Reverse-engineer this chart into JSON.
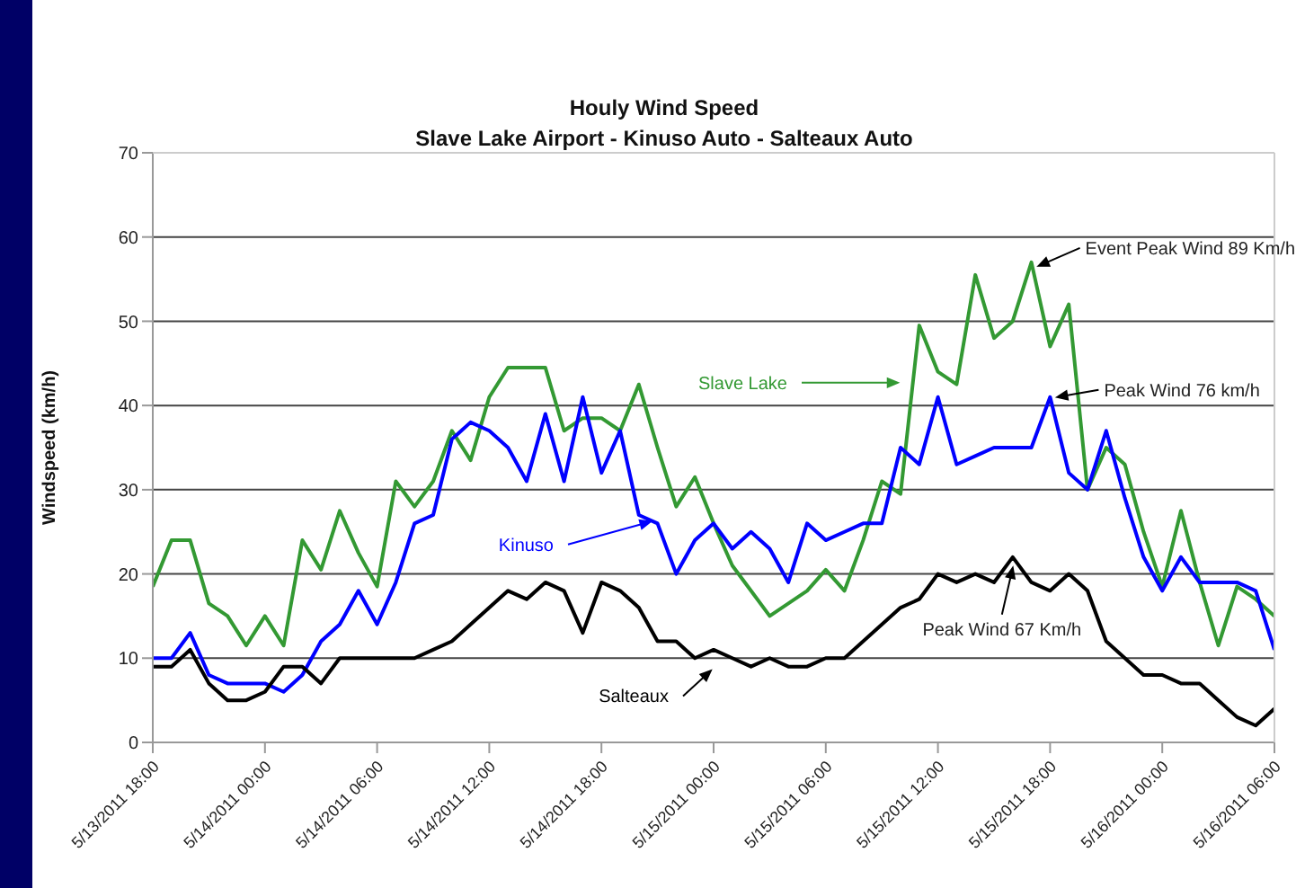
{
  "chart_data": {
    "type": "line",
    "title": "Houly Wind Speed",
    "subtitle": "Slave Lake Airport - Kinuso Auto - Salteaux Auto",
    "ylabel": "Windspeed (km/h)",
    "x": [
      "2011-05-13T18:00",
      "2011-05-13T19:00",
      "2011-05-13T20:00",
      "2011-05-13T21:00",
      "2011-05-13T22:00",
      "2011-05-13T23:00",
      "2011-05-14T00:00",
      "2011-05-14T01:00",
      "2011-05-14T02:00",
      "2011-05-14T03:00",
      "2011-05-14T04:00",
      "2011-05-14T05:00",
      "2011-05-14T06:00",
      "2011-05-14T07:00",
      "2011-05-14T08:00",
      "2011-05-14T09:00",
      "2011-05-14T10:00",
      "2011-05-14T11:00",
      "2011-05-14T12:00",
      "2011-05-14T13:00",
      "2011-05-14T14:00",
      "2011-05-14T15:00",
      "2011-05-14T16:00",
      "2011-05-14T17:00",
      "2011-05-14T18:00",
      "2011-05-14T19:00",
      "2011-05-14T20:00",
      "2011-05-14T21:00",
      "2011-05-14T22:00",
      "2011-05-14T23:00",
      "2011-05-15T00:00",
      "2011-05-15T01:00",
      "2011-05-15T02:00",
      "2011-05-15T03:00",
      "2011-05-15T04:00",
      "2011-05-15T05:00",
      "2011-05-15T06:00",
      "2011-05-15T07:00",
      "2011-05-15T08:00",
      "2011-05-15T09:00",
      "2011-05-15T10:00",
      "2011-05-15T11:00",
      "2011-05-15T12:00",
      "2011-05-15T13:00",
      "2011-05-15T14:00",
      "2011-05-15T15:00",
      "2011-05-15T16:00",
      "2011-05-15T17:00",
      "2011-05-15T18:00",
      "2011-05-15T19:00",
      "2011-05-15T20:00",
      "2011-05-15T21:00",
      "2011-05-15T22:00",
      "2011-05-15T23:00",
      "2011-05-16T00:00",
      "2011-05-16T01:00",
      "2011-05-16T02:00",
      "2011-05-16T03:00",
      "2011-05-16T04:00",
      "2011-05-16T05:00",
      "2011-05-16T06:00"
    ],
    "series": [
      {
        "name": "Slave Lake",
        "color": "#339933",
        "values": [
          18.5,
          24,
          24,
          16.5,
          15,
          11.5,
          15,
          11.5,
          24,
          20.5,
          27.5,
          22.5,
          18.5,
          31,
          28,
          31,
          37,
          33.5,
          41,
          44.5,
          44.5,
          44.5,
          37,
          38.5,
          38.5,
          37,
          42.5,
          35,
          28,
          31.5,
          26,
          21,
          18,
          15,
          16.5,
          18,
          20.5,
          18,
          24,
          31,
          29.5,
          49.5,
          44,
          42.5,
          55.5,
          48,
          50,
          57,
          47,
          52,
          30,
          35,
          33,
          25,
          18.5,
          27.5,
          19,
          11.5,
          18.5,
          17,
          15
        ]
      },
      {
        "name": "Kinuso",
        "color": "#0000ff",
        "values": [
          10,
          10,
          13,
          8,
          7,
          7,
          7,
          6,
          8,
          12,
          14,
          18,
          14,
          19,
          26,
          27,
          36,
          38,
          37,
          35,
          31,
          39,
          31,
          41,
          32,
          37,
          27,
          26,
          20,
          24,
          26,
          23,
          25,
          23,
          19,
          26,
          24,
          25,
          26,
          26,
          35,
          33,
          41,
          33,
          34,
          35,
          35,
          35,
          41,
          32,
          30,
          37,
          29,
          22,
          18,
          22,
          19,
          19,
          19,
          18,
          11
        ]
      },
      {
        "name": "Salteaux",
        "color": "#000000",
        "values": [
          9,
          9,
          11,
          7,
          5,
          5,
          6,
          9,
          9,
          7,
          10,
          10,
          10,
          10,
          10,
          11,
          12,
          14,
          16,
          18,
          17,
          19,
          18,
          13,
          19,
          18,
          16,
          12,
          12,
          10,
          11,
          10,
          9,
          10,
          9,
          9,
          10,
          10,
          12,
          14,
          16,
          17,
          20,
          19,
          20,
          19,
          22,
          19,
          18,
          20,
          18,
          12,
          10,
          8,
          8,
          7,
          7,
          5,
          3,
          2,
          4
        ]
      }
    ],
    "xlim": [
      "2011-05-13T18:00",
      "2011-05-16T06:00"
    ],
    "xticks": [
      {
        "value": "2011-05-13T18:00",
        "label": "5/13/2011 18:00"
      },
      {
        "value": "2011-05-14T00:00",
        "label": "5/14/2011 00:00"
      },
      {
        "value": "2011-05-14T06:00",
        "label": "5/14/2011 06:00"
      },
      {
        "value": "2011-05-14T12:00",
        "label": "5/14/2011 12:00"
      },
      {
        "value": "2011-05-14T18:00",
        "label": "5/14/2011 18:00"
      },
      {
        "value": "2011-05-15T00:00",
        "label": "5/15/2011 00:00"
      },
      {
        "value": "2011-05-15T06:00",
        "label": "5/15/2011 06:00"
      },
      {
        "value": "2011-05-15T12:00",
        "label": "5/15/2011 12:00"
      },
      {
        "value": "2011-05-15T18:00",
        "label": "5/15/2011 18:00"
      },
      {
        "value": "2011-05-16T00:00",
        "label": "5/16/2011 00:00"
      },
      {
        "value": "2011-05-16T06:00",
        "label": "5/16/2011 06:00"
      }
    ],
    "ylim": [
      0,
      70
    ],
    "yticks": [
      0,
      10,
      20,
      30,
      40,
      50,
      60,
      70
    ],
    "grid": "y",
    "annotations": [
      {
        "text": "Event Peak Wind 89 Km/h",
        "x": "2011-05-15T17:00",
        "y": 57
      },
      {
        "text": "Peak Wind 76 km/h",
        "x": "2011-05-15T18:00",
        "y": 41
      },
      {
        "text": "Peak Wind 67 Km/h",
        "x": "2011-05-15T16:00",
        "y": 22
      }
    ]
  }
}
